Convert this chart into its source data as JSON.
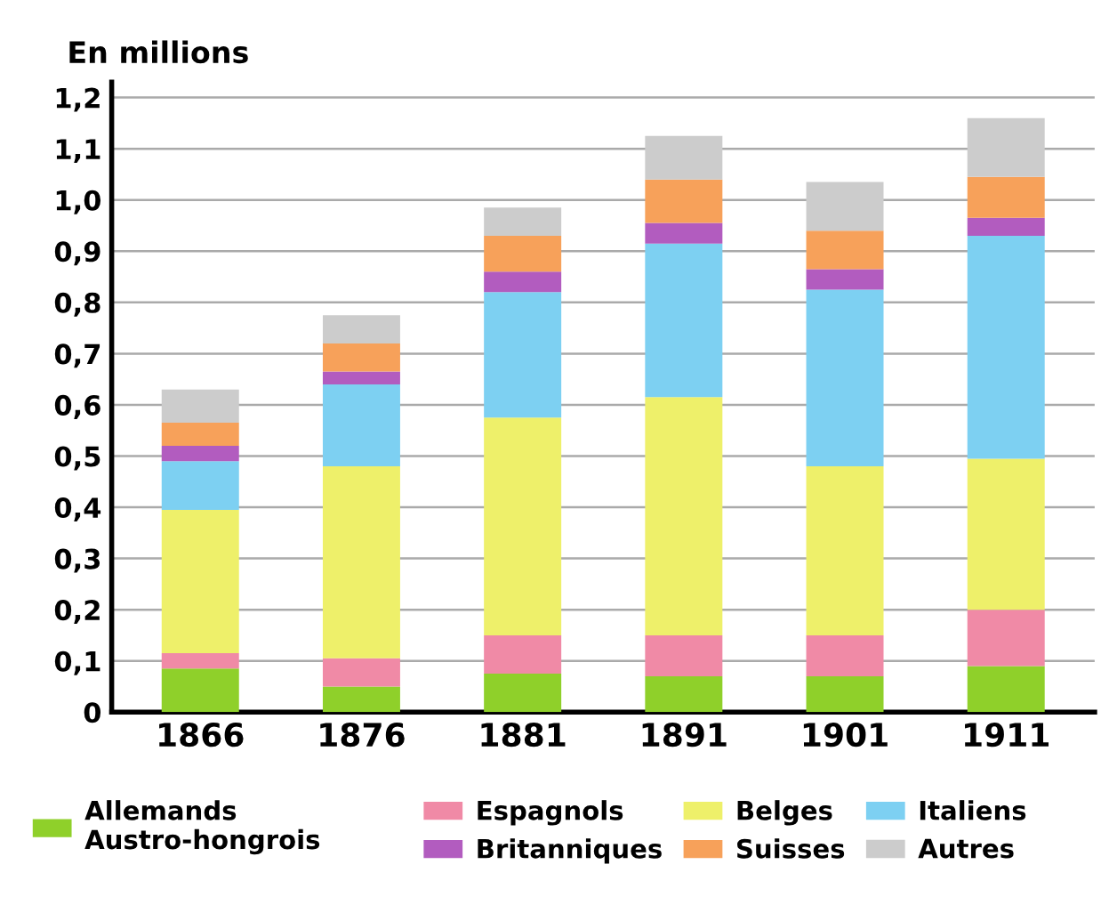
{
  "chart_data": {
    "type": "bar",
    "stacked": true,
    "ylabel": "En millions",
    "categories": [
      "1866",
      "1876",
      "1881",
      "1891",
      "1901",
      "1911"
    ],
    "series": [
      {
        "name": "Allemands\nAustro-hongrois",
        "color": "#8fd02a",
        "values": [
          0.085,
          0.05,
          0.075,
          0.07,
          0.07,
          0.09
        ]
      },
      {
        "name": "Espagnols",
        "color": "#f08aa6",
        "values": [
          0.03,
          0.055,
          0.075,
          0.08,
          0.08,
          0.11
        ]
      },
      {
        "name": "Belges",
        "color": "#eef06a",
        "values": [
          0.28,
          0.375,
          0.425,
          0.465,
          0.33,
          0.295
        ]
      },
      {
        "name": "Italiens",
        "color": "#7dd0f2",
        "values": [
          0.095,
          0.16,
          0.245,
          0.3,
          0.345,
          0.435
        ]
      },
      {
        "name": "Britanniques",
        "color": "#b25cbf",
        "values": [
          0.03,
          0.025,
          0.04,
          0.04,
          0.04,
          0.035
        ]
      },
      {
        "name": "Suisses",
        "color": "#f7a15a",
        "values": [
          0.045,
          0.055,
          0.07,
          0.085,
          0.075,
          0.08
        ]
      },
      {
        "name": "Autres",
        "color": "#cccccc",
        "values": [
          0.065,
          0.055,
          0.055,
          0.085,
          0.095,
          0.115
        ]
      }
    ],
    "ylim": [
      0,
      1.23
    ],
    "yticks": [
      0,
      {
        "value": 0.1,
        "label": "0,1"
      },
      {
        "value": 0.2,
        "label": "0,2"
      },
      {
        "value": 0.3,
        "label": "0,3"
      },
      {
        "value": 0.4,
        "label": "0,4"
      },
      {
        "value": 0.5,
        "label": "0,5"
      },
      {
        "value": 0.6,
        "label": "0,6"
      },
      {
        "value": 0.7,
        "label": "0,7"
      },
      {
        "value": 0.8,
        "label": "0,8"
      },
      {
        "value": 0.9,
        "label": "0,9"
      },
      {
        "value": 1.0,
        "label": "1,0"
      },
      {
        "value": 1.1,
        "label": "1,1"
      },
      {
        "value": 1.2,
        "label": "1,2"
      }
    ],
    "grid": "y",
    "legend": "bottom"
  }
}
